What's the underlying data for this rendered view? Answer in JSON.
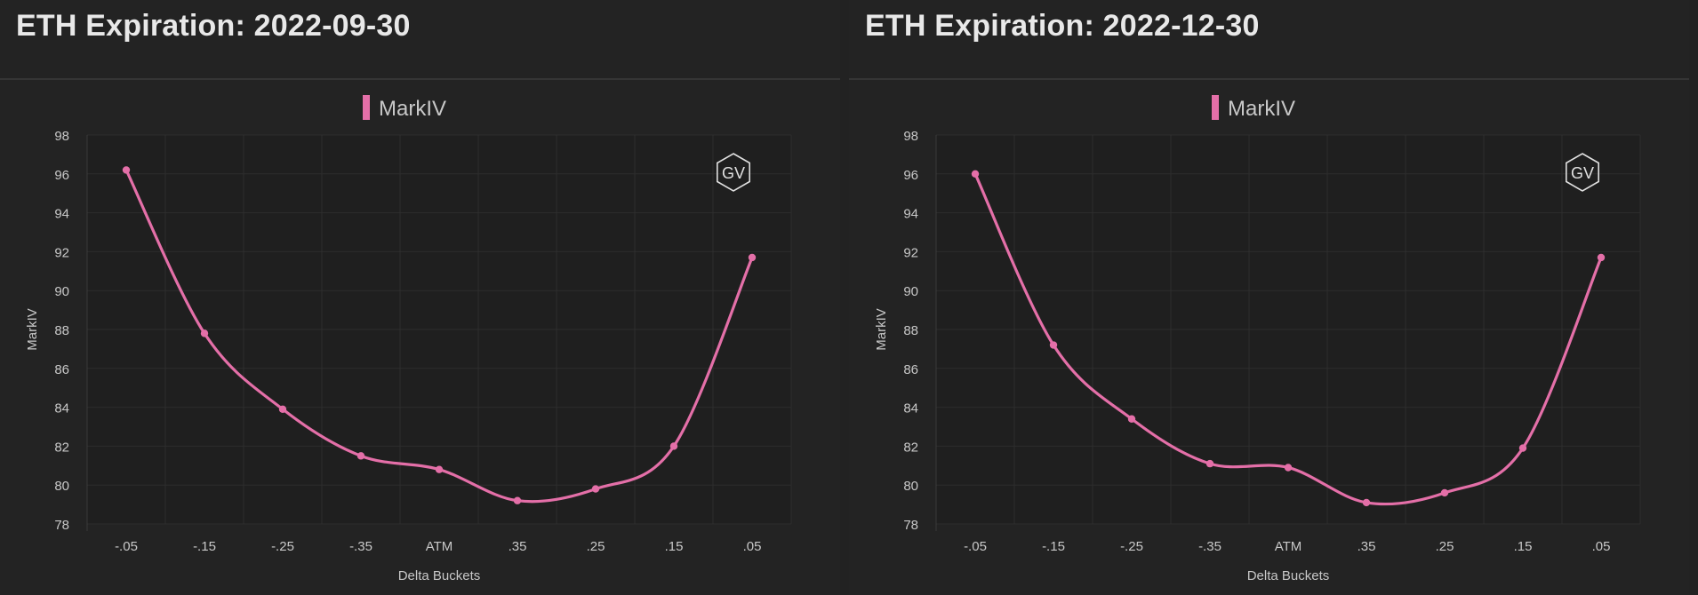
{
  "panels": [
    {
      "title": "ETH Expiration: 2022-09-30"
    },
    {
      "title": "ETH Expiration: 2022-12-30"
    }
  ],
  "colors": {
    "series": "#e46fa8",
    "background": "#232323",
    "plot_background": "#1f1f1f",
    "grid": "#2d2d2d",
    "text": "#c8c8c8"
  },
  "watermark_icon": "gv-hexagon-logo",
  "chart_data": [
    {
      "type": "line",
      "title": "",
      "xlabel": "Delta Buckets",
      "ylabel": "MarkIV",
      "categories": [
        "-.05",
        "-.15",
        "-.25",
        "-.35",
        "ATM",
        ".35",
        ".25",
        ".15",
        ".05"
      ],
      "series": [
        {
          "name": "MarkIV",
          "values": [
            96.2,
            87.8,
            83.9,
            81.5,
            80.8,
            79.2,
            79.8,
            82.0,
            91.7
          ]
        }
      ],
      "ylim": [
        78,
        98
      ],
      "yticks": [
        78,
        80,
        82,
        84,
        86,
        88,
        90,
        92,
        94,
        96,
        98
      ],
      "grid": true,
      "legend": "top-center",
      "smooth": true
    },
    {
      "type": "line",
      "title": "",
      "xlabel": "Delta Buckets",
      "ylabel": "MarkIV",
      "categories": [
        "-.05",
        "-.15",
        "-.25",
        "-.35",
        "ATM",
        ".35",
        ".25",
        ".15",
        ".05"
      ],
      "series": [
        {
          "name": "MarkIV",
          "values": [
            96.0,
            87.2,
            83.4,
            81.1,
            80.9,
            79.1,
            79.6,
            81.9,
            91.7
          ]
        }
      ],
      "ylim": [
        78,
        98
      ],
      "yticks": [
        78,
        80,
        82,
        84,
        86,
        88,
        90,
        92,
        94,
        96,
        98
      ],
      "grid": true,
      "legend": "top-center",
      "smooth": true
    }
  ]
}
